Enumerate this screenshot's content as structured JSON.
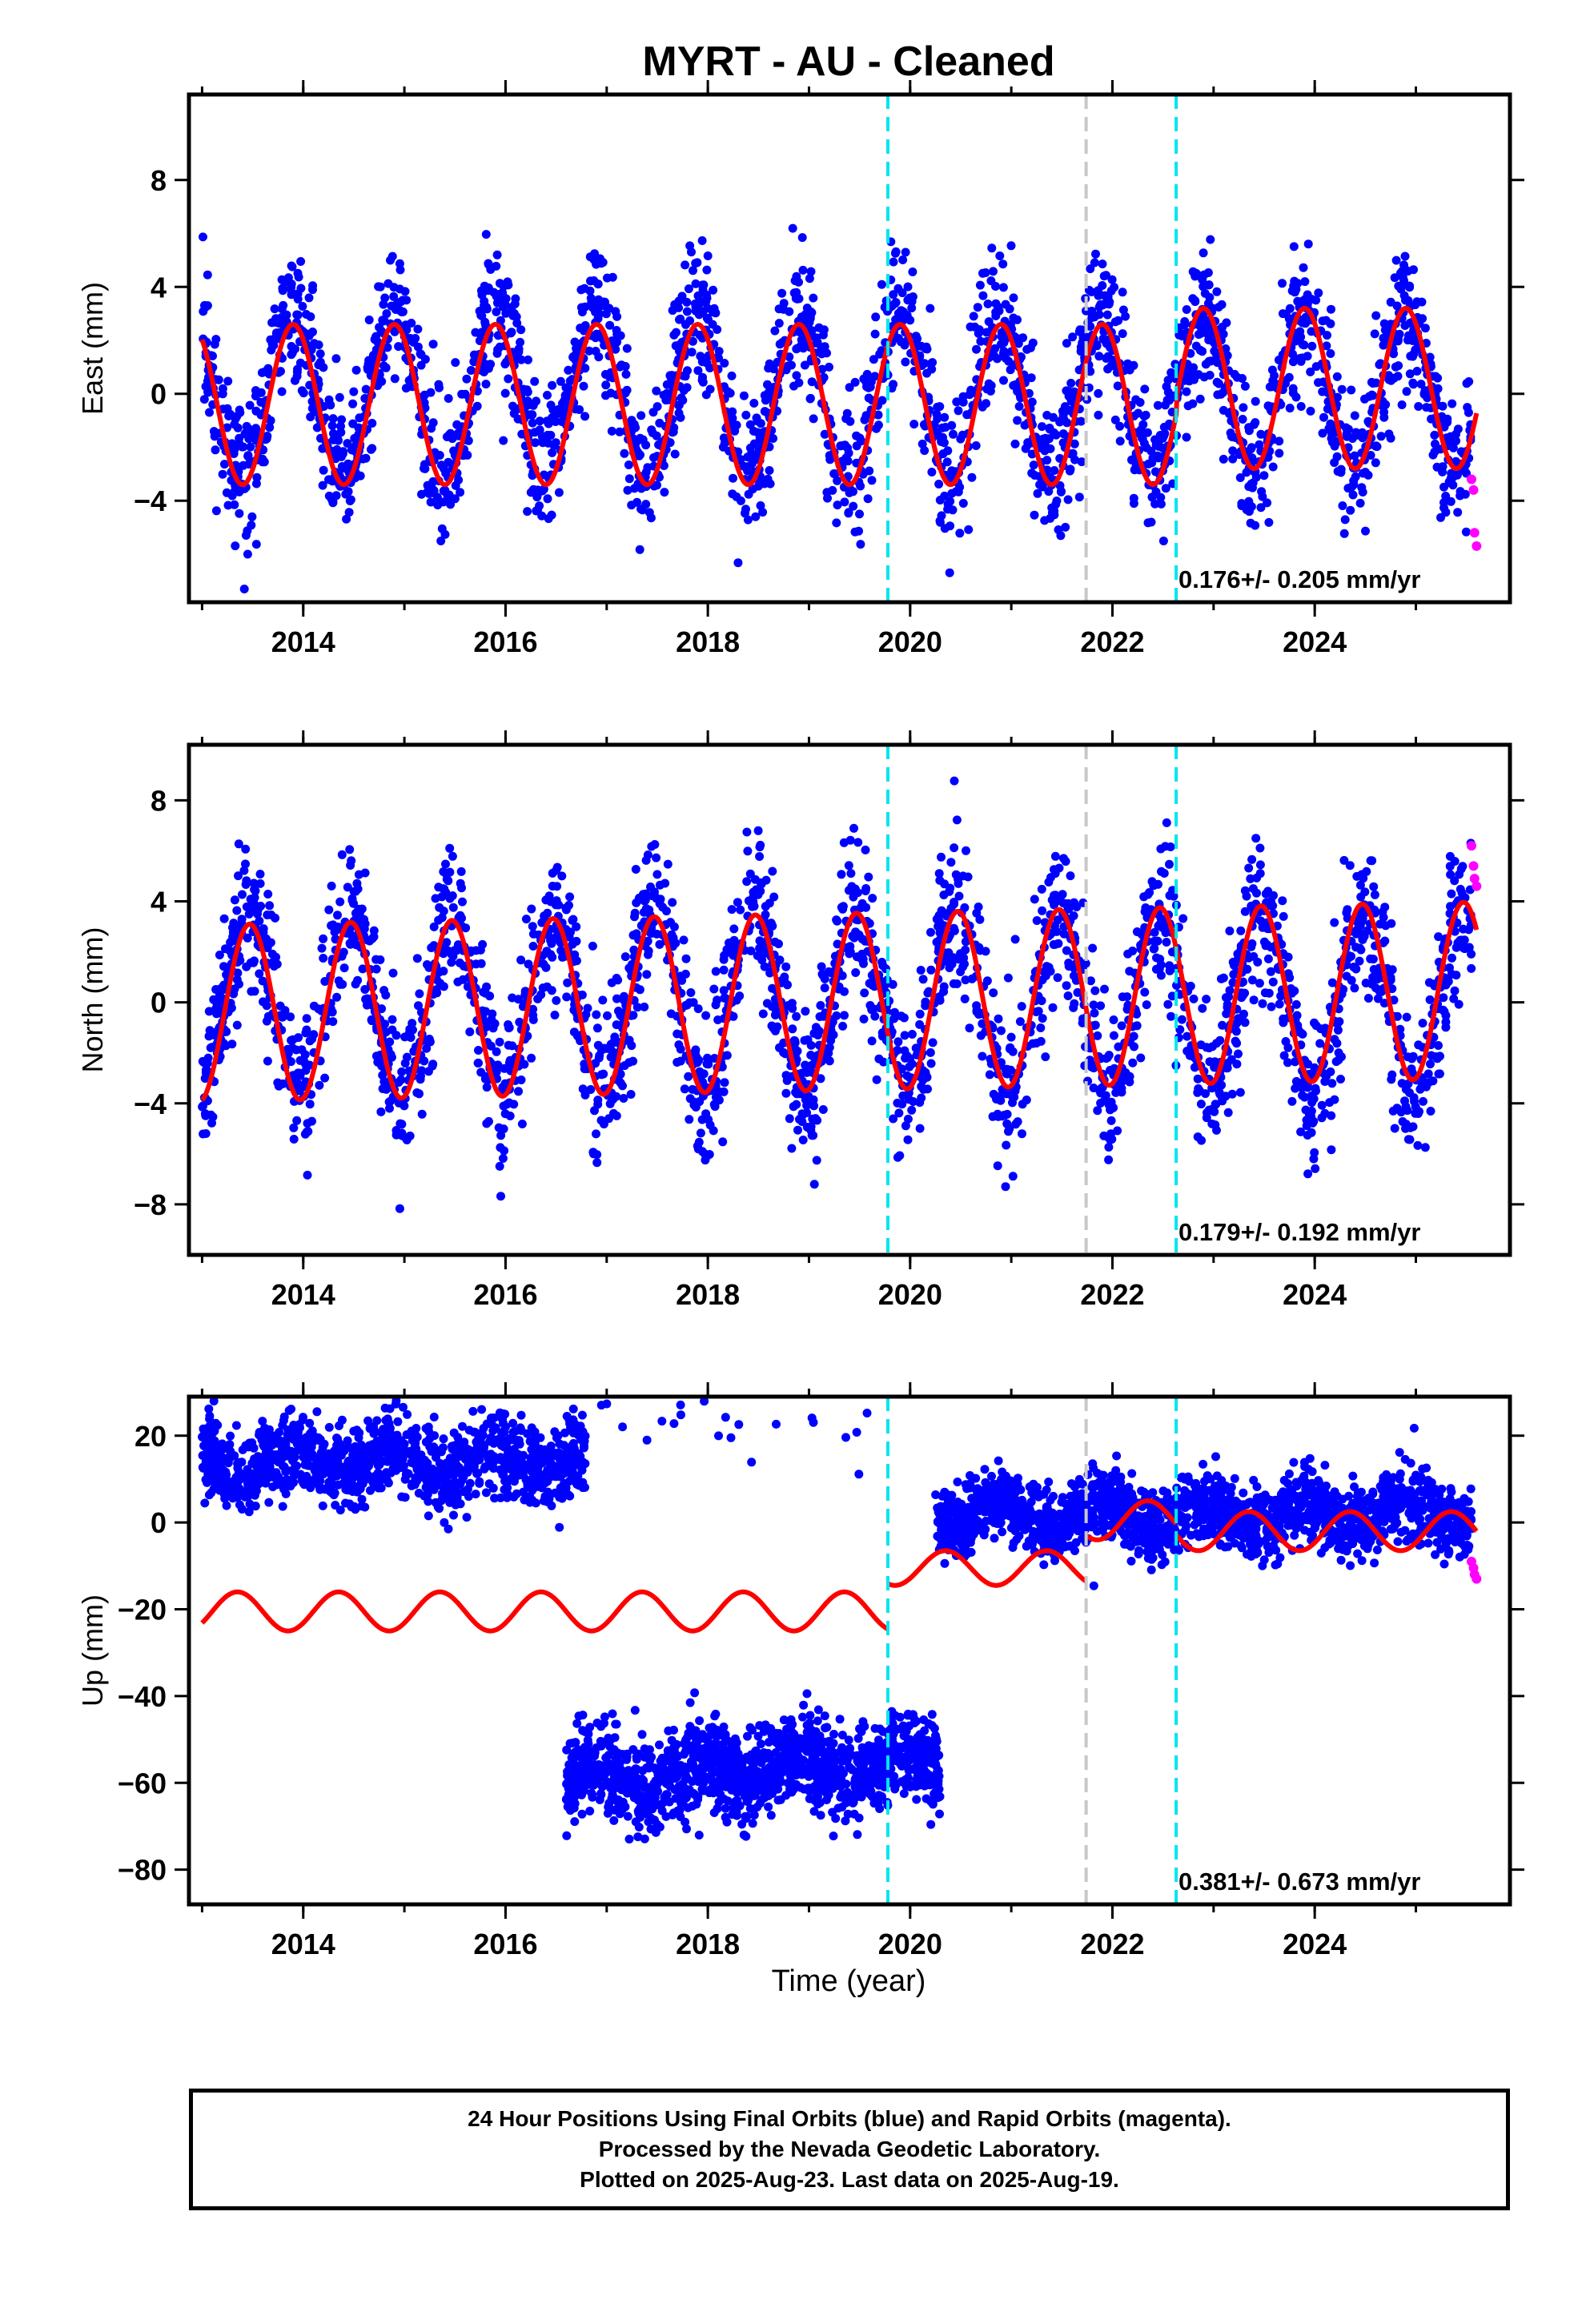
{
  "title": "MYRT  - AU - Cleaned",
  "xlabel": "Time (year)",
  "footer": {
    "line1": "24 Hour Positions Using Final Orbits (blue) and Rapid Orbits (magenta).",
    "line2": "Processed by the Nevada Geodetic Laboratory.",
    "line3": "Plotted on 2025-Aug-23. Last data on 2025-Aug-19."
  },
  "colors": {
    "final_orbits": "#0000ff",
    "rapid_orbits": "#ff00ff",
    "model": "#ff0000",
    "equipment_change": "#00e5ee",
    "other_event": "#c8c8c8"
  },
  "chart_data": [
    {
      "type": "scatter",
      "ylabel": "East (mm)",
      "rate_text": "0.176+/- 0.205 mm/yr",
      "xlim": [
        2012.87,
        2025.93
      ],
      "ylim": [
        -7.8,
        11.2
      ],
      "x_ticks": [
        2014,
        2016,
        2018,
        2020,
        2022,
        2024
      ],
      "y_ticks": [
        -4,
        0,
        4,
        8
      ],
      "vlines": [
        {
          "x": 2019.78,
          "kind": "equipment_change"
        },
        {
          "x": 2021.74,
          "kind": "other_event"
        },
        {
          "x": 2022.63,
          "kind": "equipment_change"
        }
      ],
      "series": [
        {
          "role": "final_orbits",
          "x_range": [
            2013.0,
            2025.55
          ],
          "amplitude": 3.0,
          "phase_peak": 0.9,
          "offset": 0.0,
          "noise": 1.3,
          "count": 2600
        },
        {
          "role": "rapid_orbits",
          "x": [
            2025.55,
            2025.57,
            2025.58,
            2025.6
          ],
          "values": [
            -3.2,
            -3.6,
            -5.2,
            -5.7
          ]
        },
        {
          "role": "model",
          "amplitude": 3.0,
          "phase_peak": 0.9,
          "offset": -0.4,
          "breaks": [
            {
              "x": 2022.63,
              "jump": 0.6
            }
          ]
        }
      ]
    },
    {
      "type": "scatter",
      "ylabel": "North (mm)",
      "rate_text": "0.179+/- 0.192 mm/yr",
      "xlim": [
        2012.87,
        2025.93
      ],
      "ylim": [
        -10.0,
        10.2
      ],
      "x_ticks": [
        2014,
        2016,
        2018,
        2020,
        2022,
        2024
      ],
      "y_ticks": [
        -8,
        -4,
        0,
        4,
        8
      ],
      "vlines": [
        {
          "x": 2019.78,
          "kind": "equipment_change"
        },
        {
          "x": 2021.74,
          "kind": "other_event"
        },
        {
          "x": 2022.63,
          "kind": "equipment_change"
        }
      ],
      "series": [
        {
          "role": "final_orbits",
          "x_range": [
            2013.0,
            2025.55
          ],
          "amplitude": 3.5,
          "phase_peak": 0.47,
          "offset": 0.0,
          "noise": 1.5,
          "count": 2600
        },
        {
          "role": "rapid_orbits",
          "x": [
            2025.55,
            2025.57,
            2025.58,
            2025.6
          ],
          "values": [
            6.2,
            5.4,
            4.9,
            4.6
          ]
        },
        {
          "role": "model",
          "amplitude": 3.5,
          "phase_peak": 0.47,
          "offset": 0.0,
          "trend": 0.18
        }
      ]
    },
    {
      "type": "scatter",
      "ylabel": "Up (mm)",
      "rate_text": "0.381+/- 0.673 mm/yr",
      "xlim": [
        2012.87,
        2025.93
      ],
      "ylim": [
        -88,
        29
      ],
      "x_ticks": [
        2014,
        2016,
        2018,
        2020,
        2022,
        2024
      ],
      "y_ticks": [
        -80,
        -60,
        -40,
        -20,
        0,
        20
      ],
      "vlines": [
        {
          "x": 2019.78,
          "kind": "equipment_change"
        },
        {
          "x": 2021.74,
          "kind": "other_event"
        },
        {
          "x": 2022.63,
          "kind": "equipment_change"
        }
      ],
      "series": [
        {
          "role": "final_orbits",
          "segments": [
            {
              "x_range": [
                2013.0,
                2016.8
              ],
              "level": 14,
              "noise": 4.5,
              "count": 1200
            },
            {
              "x_range": [
                2016.8,
                2019.8
              ],
              "level": 22,
              "noise": 4,
              "count": 22
            },
            {
              "x_range": [
                2016.6,
                2020.3
              ],
              "level": -60,
              "noise": 5,
              "count": 1400
            },
            {
              "x_range": [
                2020.25,
                2025.55
              ],
              "level": 2,
              "noise": 4,
              "count": 1800
            }
          ]
        },
        {
          "role": "rapid_orbits",
          "x": [
            2025.55,
            2025.57,
            2025.58,
            2025.6
          ],
          "values": [
            -9,
            -10.5,
            -12,
            -13
          ]
        },
        {
          "role": "model",
          "segments": [
            {
              "x_range": [
                2013.0,
                2019.78
              ],
              "level": -20.5,
              "amplitude": 4.5
            },
            {
              "x_range": [
                2019.78,
                2021.74
              ],
              "level": -10.5,
              "amplitude": 4.0
            },
            {
              "x_range": [
                2021.74,
                2022.63
              ],
              "level": 0.5,
              "amplitude": 4.5
            },
            {
              "x_range": [
                2022.63,
                2025.6
              ],
              "level": -2.0,
              "amplitude": 4.5
            }
          ]
        }
      ]
    }
  ]
}
